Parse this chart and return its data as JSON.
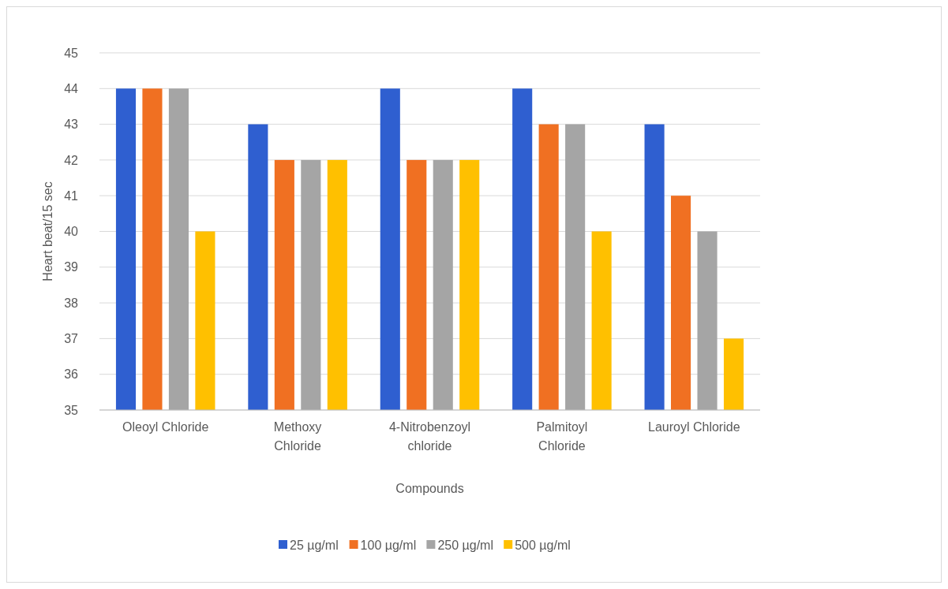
{
  "chart_data": {
    "type": "bar",
    "xlabel": "Compounds",
    "ylabel": "Heart beat/15 sec",
    "categories": [
      "Oleoyl Chloride",
      "Methoxy\nChloride",
      "4-Nitrobenzoyl\nchloride",
      "Palmitoyl\nChloride",
      "Lauroyl Chloride"
    ],
    "series": [
      {
        "name": "25 µg/ml",
        "color": "#2f5fd0",
        "values": [
          44,
          43,
          44,
          44,
          43
        ]
      },
      {
        "name": "100 µg/ml",
        "color": "#f07022",
        "values": [
          44,
          42,
          42,
          43,
          41
        ]
      },
      {
        "name": "250 µg/ml",
        "color": "#a5a5a5",
        "values": [
          44,
          42,
          42,
          43,
          40
        ]
      },
      {
        "name": "500 µg/ml",
        "color": "#ffc000",
        "values": [
          40,
          42,
          42,
          40,
          37
        ]
      }
    ],
    "ylim": [
      35,
      45
    ],
    "yticks": [
      35,
      36,
      37,
      38,
      39,
      40,
      41,
      42,
      43,
      44,
      45
    ],
    "grid": "y",
    "legend": "bottom"
  }
}
